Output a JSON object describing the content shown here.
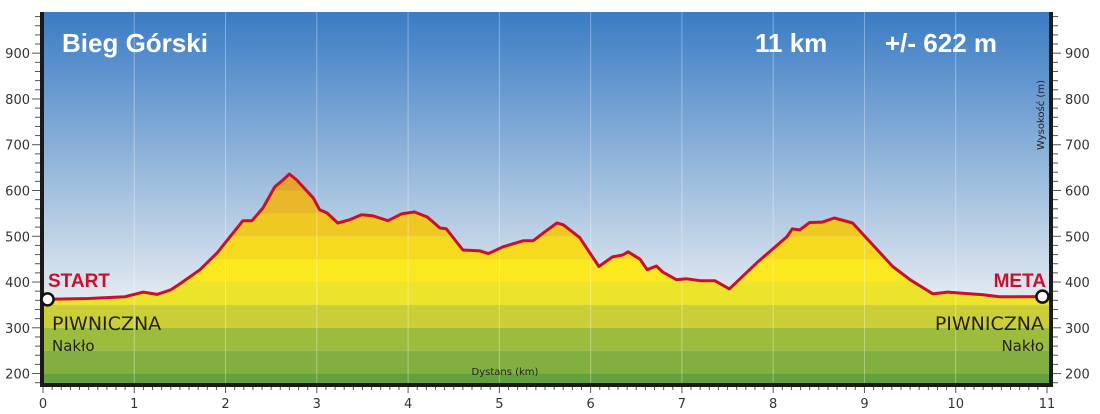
{
  "chart_data": {
    "type": "area",
    "title": "Bieg Górski",
    "distance_label": "11 km",
    "elevation_label": "+/- 622 m",
    "xlabel": "Dystans (km)",
    "ylabel": "Wysokość (m)",
    "xlim": [
      0,
      11
    ],
    "ylim": [
      175,
      990
    ],
    "xticks": [
      0,
      1,
      2,
      3,
      4,
      5,
      6,
      7,
      8,
      9,
      10,
      11
    ],
    "yticks": [
      200,
      300,
      400,
      500,
      600,
      700,
      800,
      900
    ],
    "grid": "vertical at each km",
    "elevation_band_step": 50,
    "colors": {
      "line": "#c8102e",
      "sky_top": "#3a7cc4",
      "sky_bottom": "#dfe7ef",
      "bands": {
        "150": "#64a03e",
        "200": "#82b040",
        "250": "#9cbc3e",
        "300": "#cbce36",
        "350": "#ece42a",
        "400": "#fbe81e",
        "450": "#f6da1e",
        "500": "#f0c822",
        "550": "#eab62a",
        "600": "#e3a62c"
      }
    },
    "x": [
      0,
      0.5,
      0.9,
      1.1,
      1.25,
      1.4,
      1.5,
      1.72,
      1.91,
      2.19,
      2.29,
      2.41,
      2.54,
      2.63,
      2.7,
      2.78,
      2.96,
      3.03,
      3.11,
      3.23,
      3.36,
      3.49,
      3.61,
      3.78,
      3.93,
      4.07,
      4.21,
      4.35,
      4.42,
      4.6,
      4.79,
      4.88,
      5.04,
      5.26,
      5.37,
      5.48,
      5.63,
      5.7,
      5.88,
      6.09,
      6.24,
      6.35,
      6.41,
      6.54,
      6.62,
      6.72,
      6.79,
      6.94,
      7.05,
      7.2,
      7.36,
      7.52,
      7.82,
      8.15,
      8.21,
      8.29,
      8.4,
      8.54,
      8.67,
      8.87,
      9.31,
      9.5,
      9.75,
      9.91,
      10.3,
      10.48,
      11
    ],
    "y": [
      362,
      364,
      368,
      378,
      373,
      383,
      396,
      427,
      464,
      534,
      534,
      562,
      608,
      623,
      636,
      623,
      584,
      558,
      551,
      529,
      536,
      547,
      545,
      534,
      549,
      553,
      542,
      518,
      516,
      470,
      468,
      462,
      477,
      490,
      490,
      507,
      529,
      525,
      497,
      434,
      455,
      459,
      466,
      450,
      427,
      435,
      422,
      405,
      407,
      403,
      403,
      385,
      442,
      499,
      516,
      514,
      530,
      531,
      540,
      529,
      434,
      405,
      374,
      378,
      372,
      368,
      368
    ],
    "annotations": {
      "start": {
        "label": "START",
        "town": "PIWNICZNA",
        "place": "Nakło"
      },
      "finish": {
        "label": "META",
        "town": "PIWNICZNA",
        "place": "Nakło"
      }
    }
  }
}
